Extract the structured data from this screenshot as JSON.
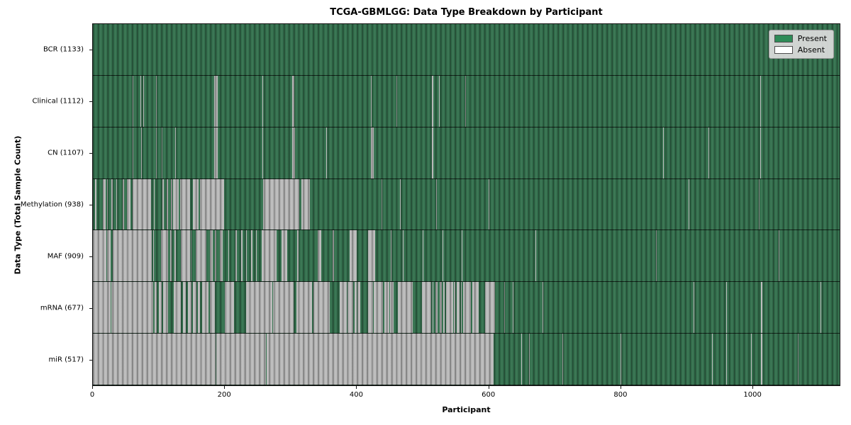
{
  "title": "TCGA-GBMLGG: Data Type Breakdown by Participant",
  "colors": {
    "present_legend": "#2e8b57",
    "absent_legend": "#ffffff",
    "present_render": "#35724f",
    "absent_render": "#bcbcbc"
  },
  "chart_data": {
    "type": "heatmap",
    "title": "TCGA-GBMLGG: Data Type Breakdown by Participant",
    "xlabel": "Participant",
    "ylabel": "Data Type (Total Sample Count)",
    "x_ticks": [
      0,
      200,
      400,
      600,
      800,
      1000
    ],
    "xlim": [
      0,
      1133
    ],
    "n_participants": 1133,
    "grid": false,
    "legend_position": "upper right",
    "legend_labels": {
      "present": "Present",
      "absent": "Absent"
    },
    "rows": [
      {
        "name": "BCR",
        "label": "BCR (1133)",
        "present_count": 1133,
        "absent_runs": []
      },
      {
        "name": "Clinical",
        "label": "Clinical (1112)",
        "present_count": 1112,
        "absent_runs": [
          [
            60,
            61
          ],
          [
            72,
            73
          ],
          [
            76,
            77
          ],
          [
            96,
            97
          ],
          [
            184,
            189
          ],
          [
            257,
            258
          ],
          [
            302,
            306
          ],
          [
            422,
            423
          ],
          [
            460,
            461
          ],
          [
            514,
            516
          ],
          [
            525,
            526
          ],
          [
            565,
            566
          ],
          [
            1013,
            1014
          ]
        ]
      },
      {
        "name": "CN",
        "label": "CN (1107)",
        "present_count": 1107,
        "absent_runs": [
          [
            60,
            61
          ],
          [
            73,
            74
          ],
          [
            96,
            97
          ],
          [
            104,
            105
          ],
          [
            125,
            126
          ],
          [
            184,
            189
          ],
          [
            257,
            258
          ],
          [
            302,
            307
          ],
          [
            354,
            355
          ],
          [
            422,
            426
          ],
          [
            514,
            516
          ],
          [
            865,
            866
          ],
          [
            934,
            935
          ],
          [
            1013,
            1014
          ]
        ]
      },
      {
        "name": "Methylation",
        "label": "Methylation (938)",
        "present_count": 938,
        "absent_runs": [
          [
            3,
            5
          ],
          [
            15,
            19
          ],
          [
            22,
            23
          ],
          [
            28,
            30
          ],
          [
            35,
            37
          ],
          [
            45,
            47
          ],
          [
            52,
            57
          ],
          [
            60,
            88
          ],
          [
            93,
            94
          ],
          [
            105,
            108
          ],
          [
            112,
            114
          ],
          [
            118,
            120
          ],
          [
            122,
            130
          ],
          [
            132,
            147
          ],
          [
            152,
            160
          ],
          [
            163,
            199
          ],
          [
            258,
            313
          ],
          [
            316,
            329
          ],
          [
            438,
            439
          ],
          [
            466,
            467
          ],
          [
            521,
            522
          ],
          [
            600,
            601
          ],
          [
            904,
            905
          ],
          [
            1010,
            1011
          ]
        ]
      },
      {
        "name": "MAF",
        "label": "MAF (909)",
        "present_count": 909,
        "absent_runs": [
          [
            0,
            20
          ],
          [
            21,
            27
          ],
          [
            30,
            89
          ],
          [
            91,
            92
          ],
          [
            103,
            114
          ],
          [
            117,
            119
          ],
          [
            124,
            126
          ],
          [
            133,
            147
          ],
          [
            148,
            150
          ],
          [
            156,
            172
          ],
          [
            178,
            182
          ],
          [
            185,
            187
          ],
          [
            193,
            197
          ],
          [
            205,
            207
          ],
          [
            216,
            218
          ],
          [
            225,
            227
          ],
          [
            232,
            234
          ],
          [
            240,
            242
          ],
          [
            247,
            249
          ],
          [
            256,
            279
          ],
          [
            286,
            295
          ],
          [
            310,
            312
          ],
          [
            341,
            347
          ],
          [
            364,
            366
          ],
          [
            390,
            400
          ],
          [
            417,
            428
          ],
          [
            452,
            453
          ],
          [
            470,
            471
          ],
          [
            500,
            501
          ],
          [
            530,
            531
          ],
          [
            560,
            561
          ],
          [
            671,
            672
          ],
          [
            854,
            855
          ],
          [
            1040,
            1041
          ]
        ]
      },
      {
        "name": "mRNA",
        "label": "mRNA (677)",
        "present_count": 677,
        "absent_runs": [
          [
            0,
            27
          ],
          [
            28,
            91
          ],
          [
            94,
            97
          ],
          [
            100,
            104
          ],
          [
            106,
            114
          ],
          [
            123,
            133
          ],
          [
            137,
            141
          ],
          [
            144,
            150
          ],
          [
            152,
            157
          ],
          [
            159,
            163
          ],
          [
            166,
            175
          ],
          [
            177,
            185
          ],
          [
            200,
            214
          ],
          [
            232,
            272
          ],
          [
            273,
            304
          ],
          [
            309,
            333
          ],
          [
            335,
            359
          ],
          [
            374,
            385
          ],
          [
            386,
            395
          ],
          [
            397,
            400
          ],
          [
            401,
            406
          ],
          [
            417,
            425
          ],
          [
            426,
            440
          ],
          [
            442,
            450
          ],
          [
            451,
            456
          ],
          [
            463,
            485
          ],
          [
            499,
            513
          ],
          [
            515,
            517
          ],
          [
            520,
            523
          ],
          [
            526,
            529
          ],
          [
            532,
            534
          ],
          [
            536,
            547
          ],
          [
            548,
            550
          ],
          [
            552,
            556
          ],
          [
            558,
            560
          ],
          [
            562,
            574
          ],
          [
            576,
            585
          ],
          [
            595,
            610
          ],
          [
            624,
            625
          ],
          [
            637,
            638
          ],
          [
            682,
            683
          ],
          [
            911,
            912
          ],
          [
            961,
            962
          ],
          [
            1014,
            1016
          ],
          [
            1104,
            1105
          ]
        ]
      },
      {
        "name": "miR",
        "label": "miR (517)",
        "present_count": 517,
        "absent_runs": [
          [
            0,
            186
          ],
          [
            187,
            263
          ],
          [
            264,
            608
          ],
          [
            650,
            651
          ],
          [
            662,
            663
          ],
          [
            712,
            713
          ],
          [
            800,
            801
          ],
          [
            939,
            940
          ],
          [
            961,
            962
          ],
          [
            998,
            999
          ],
          [
            1014,
            1016
          ],
          [
            1070,
            1071
          ]
        ]
      }
    ]
  }
}
